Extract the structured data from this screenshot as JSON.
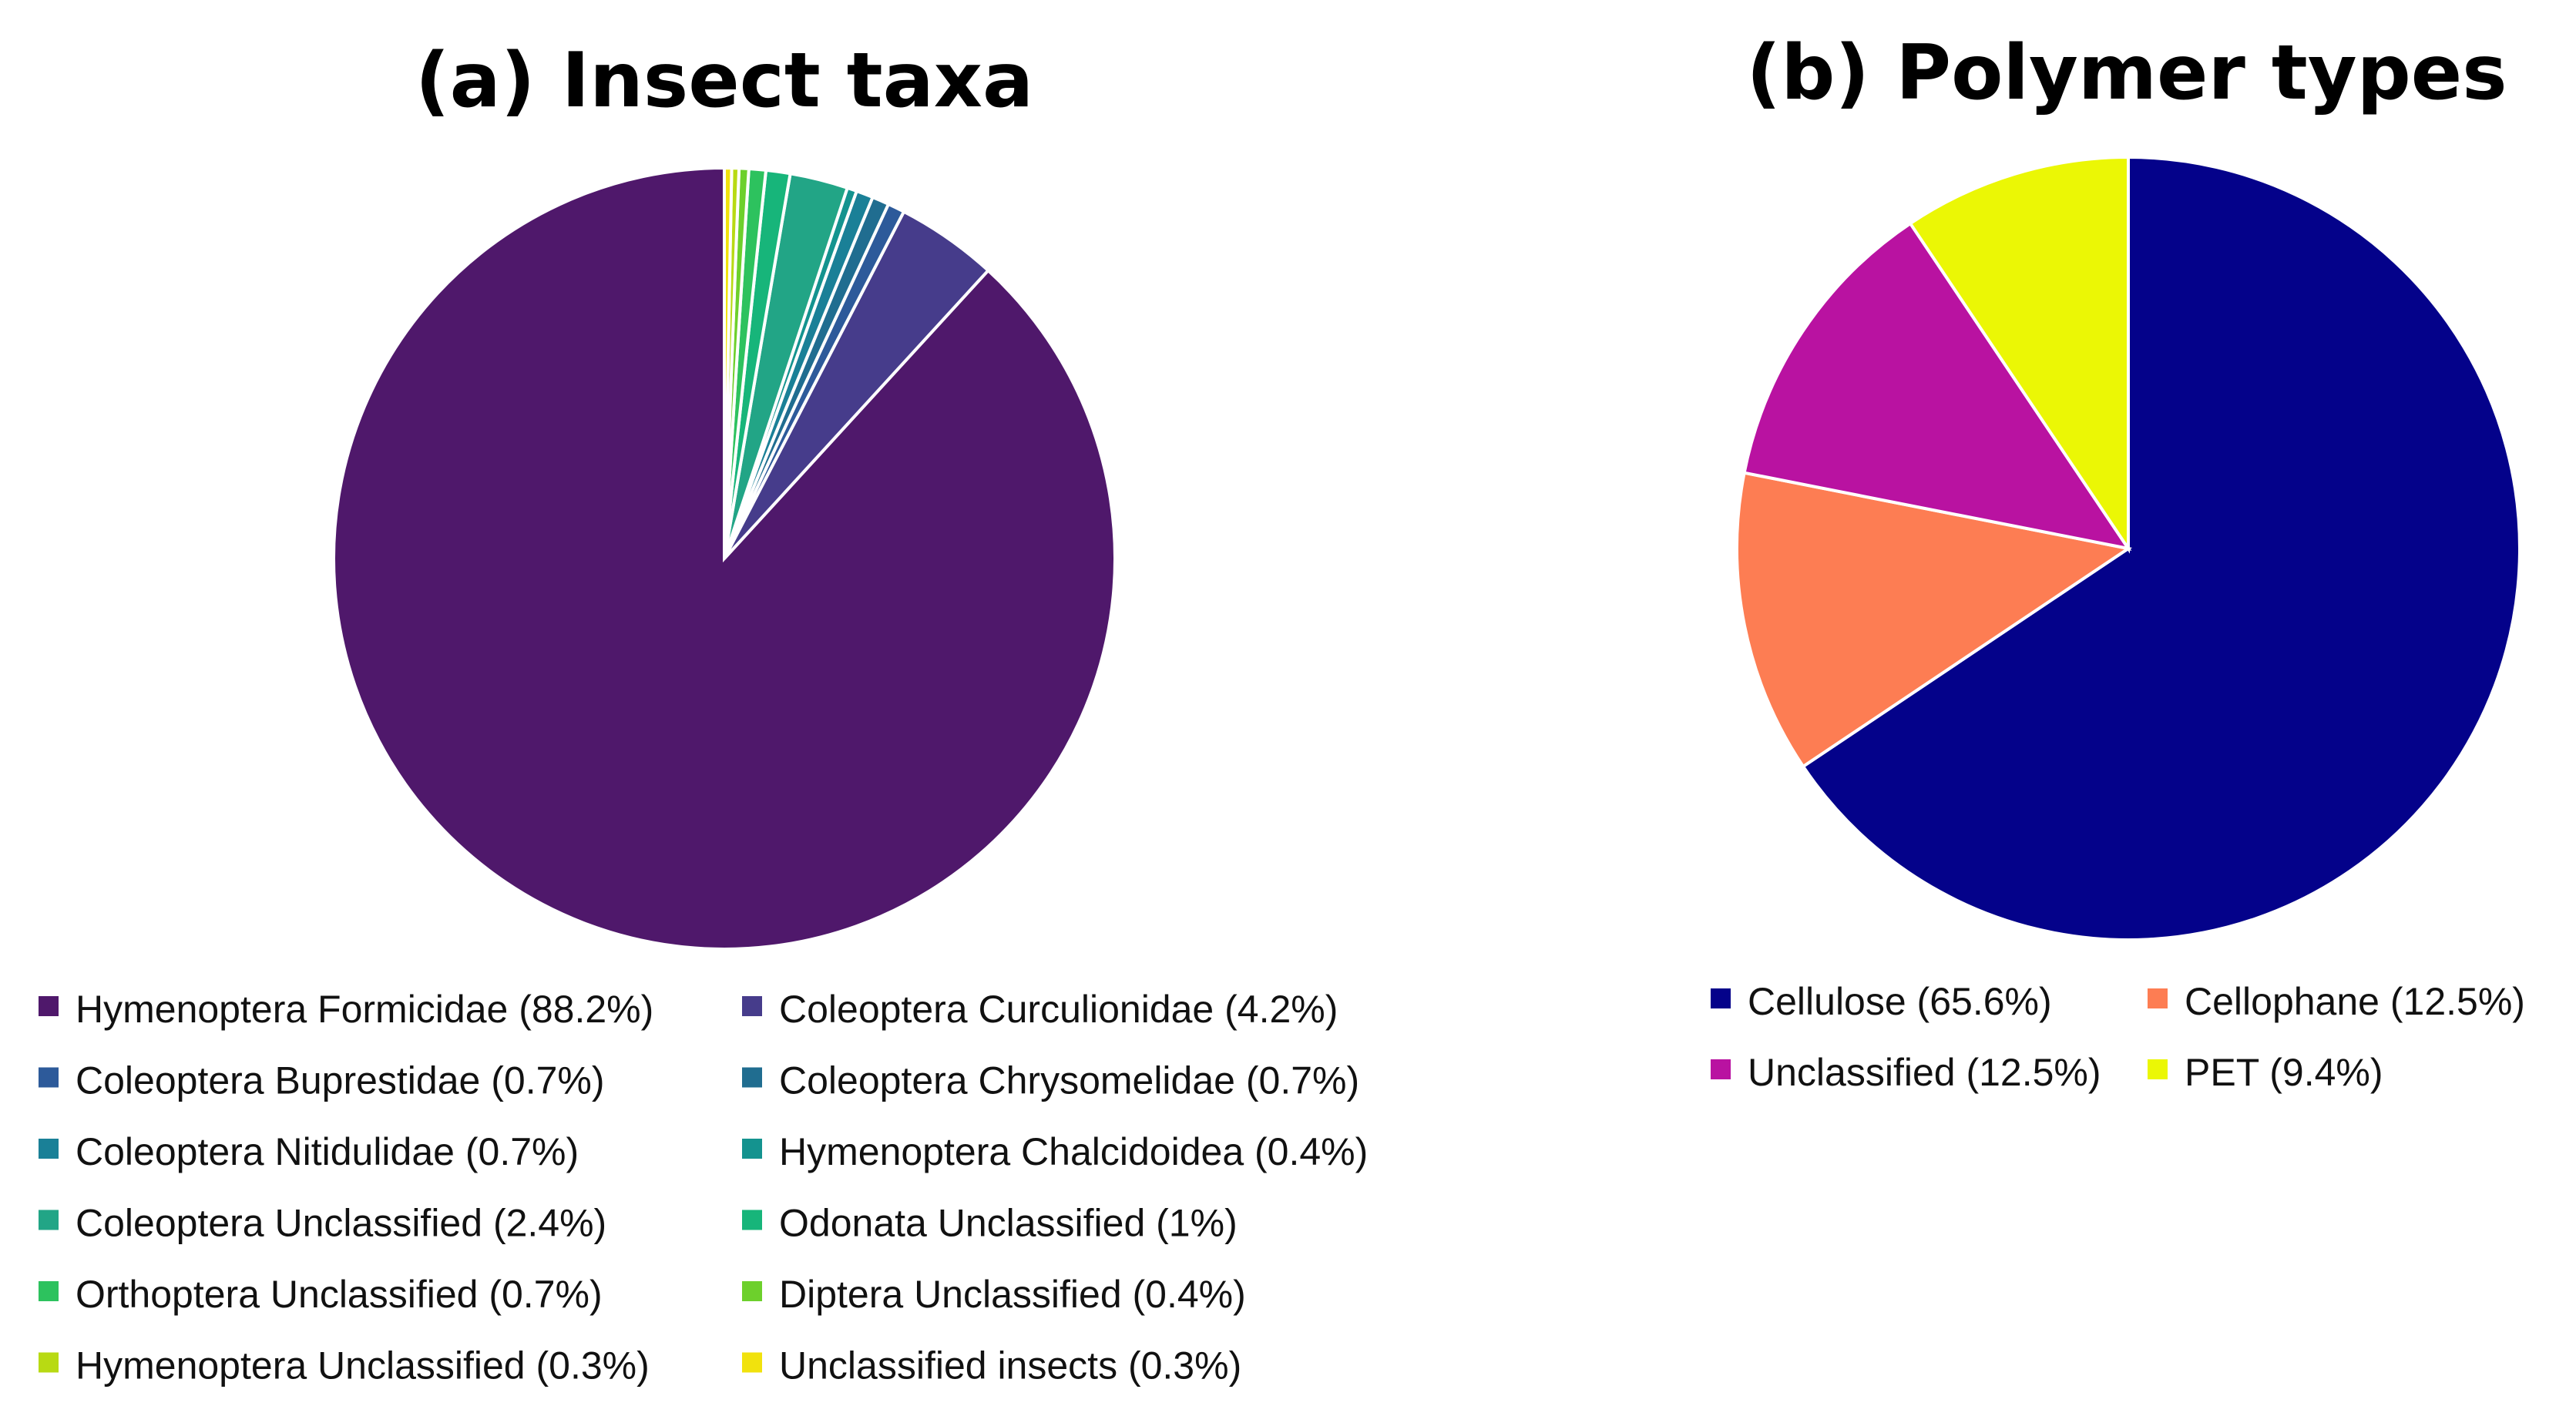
{
  "chart_data": [
    {
      "type": "pie",
      "title": "(a) Insect taxa",
      "labels": [
        "Hymenoptera Formicidae (88.2%)",
        "Coleoptera Curculionidae (4.2%)",
        "Coleoptera Buprestidae (0.7%)",
        "Coleoptera Chrysomelidae (0.7%)",
        "Coleoptera Nitidulidae (0.7%)",
        "Hymenoptera Chalcidoidea (0.4%)",
        "Coleoptera Unclassified (2.4%)",
        "Odonata Unclassified (1%)",
        "Orthoptera Unclassified (0.7%)",
        "Diptera Unclassified (0.4%)",
        "Hymenoptera Unclassified (0.3%)",
        "Unclassified insects (0.3%)"
      ],
      "values": [
        88.2,
        4.2,
        0.7,
        0.7,
        0.7,
        0.4,
        2.4,
        1.0,
        0.7,
        0.4,
        0.3,
        0.3
      ],
      "colors": [
        "#4f186b",
        "#463c8b",
        "#2d5a9a",
        "#206d90",
        "#1a8097",
        "#14938f",
        "#22a586",
        "#17b57a",
        "#2dc25e",
        "#6dd02c",
        "#b8da13",
        "#f1e20d"
      ],
      "direction": "counterclockwise",
      "start_angle": "12 o'clock",
      "legend_position": "bottom",
      "legend_columns": 2
    },
    {
      "type": "pie",
      "title": "(b) Polymer types",
      "labels": [
        "Cellulose (65.6%)",
        "Cellophane (12.5%)",
        "Unclassified (12.5%)",
        "PET (9.4%)"
      ],
      "values": [
        65.6,
        12.5,
        12.5,
        9.4
      ],
      "colors": [
        "#04028a",
        "#fd7d53",
        "#b912a1",
        "#ebf705"
      ],
      "direction": "clockwise",
      "start_angle": "12 o'clock",
      "legend_position": "bottom",
      "legend_columns": 2
    }
  ]
}
